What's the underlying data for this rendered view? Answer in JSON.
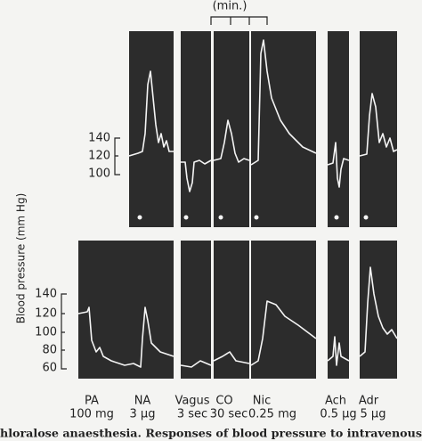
{
  "header": {
    "time_label": "(min.)"
  },
  "y_axis_label": "Blood pressure (mm Hg)",
  "upper_ticks": [
    "140",
    "120",
    "100"
  ],
  "lower_ticks": [
    "140",
    "120",
    "100",
    "80",
    "60"
  ],
  "drugs": [
    {
      "name": "PA",
      "dose": "100 mg"
    },
    {
      "name": "NA",
      "dose": "3 μg"
    },
    {
      "name": "Vagus",
      "dose": "3 sec"
    },
    {
      "name": "CO",
      "dose": "30 sec"
    },
    {
      "name": "Nic",
      "dose": "0.25 mg"
    },
    {
      "name": "Ach",
      "dose": "0.5 μg"
    },
    {
      "name": "Adr",
      "dose": "5 μg"
    }
  ],
  "caption": "hloralose anaesthesia.  Responses of blood pressure to intravenous"
}
